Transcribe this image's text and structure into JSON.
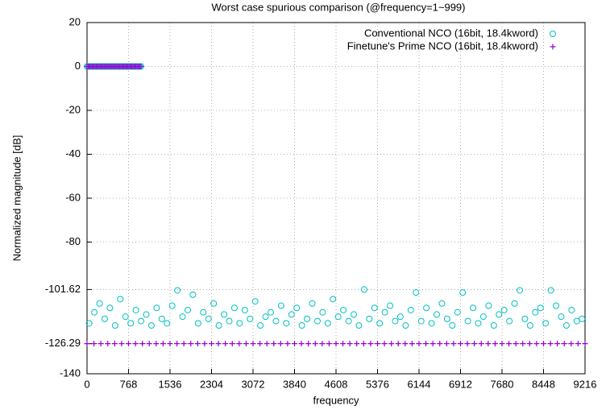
{
  "chart_data": {
    "type": "scatter",
    "title": "Worst case spurious comparison (@frequency=1~999)",
    "xlabel": "frequency",
    "ylabel": "Normalized magnitude [dB]",
    "xlim": [
      0,
      9216
    ],
    "ylim": [
      -140,
      20
    ],
    "xticks": [
      0,
      768,
      1536,
      2304,
      3072,
      3840,
      4608,
      5376,
      6144,
      6912,
      7680,
      8448,
      9216
    ],
    "yticks": [
      20,
      0,
      -20,
      -40,
      -60,
      -80,
      -101.62,
      -126.29,
      -140
    ],
    "grid": true,
    "legend": "top-right",
    "series": [
      {
        "name": "Conventional NCO (16bit, 18.4kword)",
        "color": "#00c0c0",
        "marker": "circle",
        "x": [
          0,
          25,
          50,
          75,
          100,
          125,
          150,
          175,
          200,
          225,
          250,
          275,
          300,
          325,
          350,
          375,
          400,
          425,
          450,
          475,
          500,
          525,
          550,
          575,
          600,
          625,
          650,
          675,
          700,
          725,
          750,
          775,
          800,
          825,
          850,
          875,
          900,
          925,
          950,
          975,
          999,
          40,
          136,
          232,
          328,
          424,
          520,
          616,
          712,
          808,
          904,
          1000,
          1096,
          1192,
          1288,
          1384,
          1480,
          1576,
          1672,
          1768,
          1864,
          1960,
          2056,
          2152,
          2248,
          2344,
          2440,
          2536,
          2632,
          2728,
          2824,
          2920,
          3016,
          3112,
          3208,
          3304,
          3400,
          3496,
          3592,
          3688,
          3784,
          3880,
          3976,
          4072,
          4168,
          4264,
          4360,
          4456,
          4552,
          4648,
          4744,
          4840,
          4936,
          5032,
          5128,
          5224,
          5320,
          5416,
          5512,
          5608,
          5704,
          5800,
          5896,
          5992,
          6088,
          6184,
          6280,
          6376,
          6472,
          6568,
          6664,
          6760,
          6856,
          6952,
          7048,
          7144,
          7240,
          7336,
          7432,
          7528,
          7624,
          7720,
          7816,
          7912,
          8008,
          8104,
          8200,
          8296,
          8392,
          8488,
          8584,
          8680,
          8776,
          8872,
          8968,
          9064,
          9160
        ],
        "values": [
          0,
          0,
          0,
          0,
          0,
          0,
          0,
          0,
          0,
          0,
          0,
          0,
          0,
          0,
          0,
          0,
          0,
          0,
          0,
          0,
          0,
          0,
          0,
          0,
          0,
          0,
          0,
          0,
          0,
          0,
          0,
          0,
          0,
          0,
          0,
          0,
          0,
          0,
          0,
          0,
          0,
          -117,
          -112,
          -108,
          -115,
          -110,
          -118,
          -106,
          -114,
          -117,
          -111,
          -116,
          -113,
          -118,
          -110,
          -115,
          -117,
          -109,
          -102,
          -114,
          -111,
          -104,
          -117,
          -112,
          -115,
          -108,
          -118,
          -113,
          -116,
          -110,
          -117,
          -111,
          -115,
          -107,
          -118,
          -114,
          -112,
          -116,
          -109,
          -117,
          -113,
          -110,
          -118,
          -115,
          -108,
          -116,
          -112,
          -117,
          -106,
          -114,
          -111,
          -116,
          -113,
          -118,
          -101.62,
          -115,
          -110,
          -117,
          -112,
          -109,
          -116,
          -114,
          -118,
          -111,
          -103,
          -116,
          -110,
          -117,
          -113,
          -108,
          -115,
          -118,
          -112,
          -103,
          -116,
          -110,
          -117,
          -114,
          -109,
          -118,
          -113,
          -111,
          -116,
          -108,
          -102,
          -115,
          -118,
          -112,
          -110,
          -117,
          -102,
          -109,
          -114,
          -118,
          -111,
          -116,
          -115
        ]
      },
      {
        "name": "Finetune's Prime NCO (16bit, 18.4kword)",
        "color": "#9400d3",
        "marker": "plus",
        "x": [
          0,
          25,
          50,
          75,
          100,
          125,
          150,
          175,
          200,
          225,
          250,
          275,
          300,
          325,
          350,
          375,
          400,
          425,
          450,
          475,
          500,
          525,
          550,
          575,
          600,
          625,
          650,
          675,
          700,
          725,
          750,
          775,
          800,
          825,
          850,
          875,
          900,
          925,
          950,
          975,
          999,
          0,
          128,
          256,
          384,
          512,
          640,
          768,
          896,
          1024,
          1152,
          1280,
          1408,
          1536,
          1664,
          1792,
          1920,
          2048,
          2176,
          2304,
          2432,
          2560,
          2688,
          2816,
          2944,
          3072,
          3200,
          3328,
          3456,
          3584,
          3712,
          3840,
          3968,
          4096,
          4224,
          4352,
          4480,
          4608,
          4736,
          4864,
          4992,
          5120,
          5248,
          5376,
          5504,
          5632,
          5760,
          5888,
          6016,
          6144,
          6272,
          6400,
          6528,
          6656,
          6784,
          6912,
          7040,
          7168,
          7296,
          7424,
          7552,
          7680,
          7808,
          7936,
          8064,
          8192,
          8320,
          8448,
          8576,
          8704,
          8832,
          8960,
          9088,
          9216
        ],
        "values": [
          0,
          0,
          0,
          0,
          0,
          0,
          0,
          0,
          0,
          0,
          0,
          0,
          0,
          0,
          0,
          0,
          0,
          0,
          0,
          0,
          0,
          0,
          0,
          0,
          0,
          0,
          0,
          0,
          0,
          0,
          0,
          0,
          0,
          0,
          0,
          0,
          0,
          0,
          0,
          0,
          0,
          -126.29,
          -126.29,
          -126.29,
          -126.29,
          -126.29,
          -126.29,
          -126.29,
          -126.29,
          -126.29,
          -126.29,
          -126.29,
          -126.29,
          -126.29,
          -126.29,
          -126.29,
          -126.29,
          -126.29,
          -126.29,
          -126.29,
          -126.29,
          -126.29,
          -126.29,
          -126.29,
          -126.29,
          -126.29,
          -126.29,
          -126.29,
          -126.29,
          -126.29,
          -126.29,
          -126.29,
          -126.29,
          -126.29,
          -126.29,
          -126.29,
          -126.29,
          -126.29,
          -126.29,
          -126.29,
          -126.29,
          -126.29,
          -126.29,
          -126.29,
          -126.29,
          -126.29,
          -126.29,
          -126.29,
          -126.29,
          -126.29,
          -126.29,
          -126.29,
          -126.29,
          -126.29,
          -126.29,
          -126.29,
          -126.29,
          -126.29,
          -126.29,
          -126.29,
          -126.29,
          -126.29,
          -126.29,
          -126.29,
          -126.29,
          -126.29,
          -126.29,
          -126.29,
          -126.29,
          -126.29,
          -126.29,
          -126.29,
          -126.29,
          -126.29
        ]
      }
    ]
  }
}
